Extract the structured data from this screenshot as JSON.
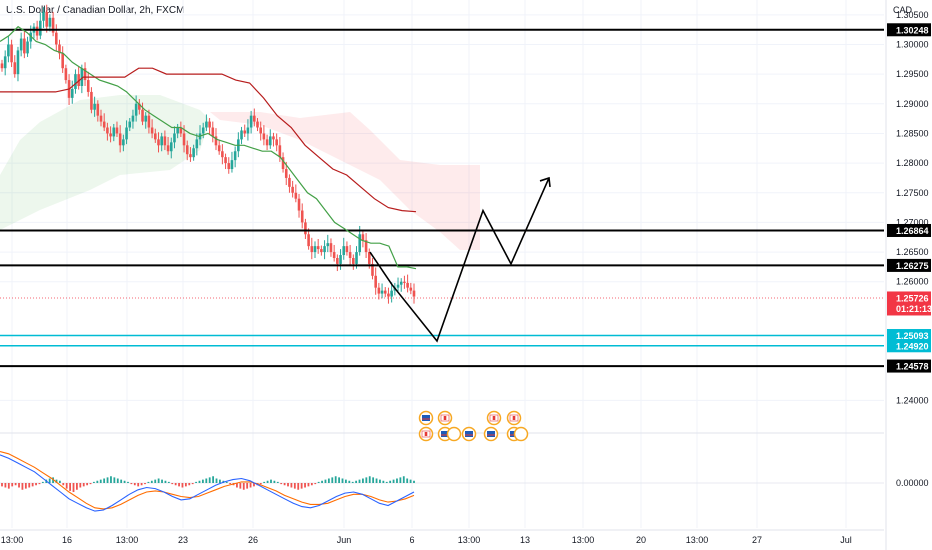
{
  "header": {
    "title": "U.S. Dollar / Canadian Dollar, 2h, FXCM",
    "currency": "CAD"
  },
  "chart_data": {
    "type": "line",
    "title": "U.S. Dollar / Canadian Dollar, 2h, FXCM",
    "xlabel": "",
    "ylabel": "",
    "ylim": [
      1.235,
      1.3075
    ],
    "grid": true,
    "x_ticks": [
      "13:00",
      "16",
      "13:00",
      "23",
      "26",
      "Jun",
      "6",
      "13:00",
      "13",
      "13:00",
      "20",
      "13:00",
      "27",
      "Jul"
    ],
    "y_ticks": [
      "1.30500",
      "1.30000",
      "1.29500",
      "1.29000",
      "1.28500",
      "1.28000",
      "1.27500",
      "1.27000",
      "1.26500",
      "1.26000",
      "1.24000"
    ],
    "macd_ticks": [
      "0.00000"
    ],
    "horizontal_levels": [
      {
        "value": 1.30248,
        "label": "1.30248",
        "color": "#000000"
      },
      {
        "value": 1.26864,
        "label": "1.26864",
        "color": "#000000"
      },
      {
        "value": 1.26275,
        "label": "1.26275",
        "color": "#000000"
      },
      {
        "value": 1.25093,
        "label": "1.25093",
        "color": "#00bcd4"
      },
      {
        "value": 1.2492,
        "label": "1.24920",
        "color": "#00bcd4"
      },
      {
        "value": 1.24578,
        "label": "1.24578",
        "color": "#000000"
      }
    ],
    "last_price": {
      "value": 1.25726,
      "label": "1.25726",
      "countdown": "01:21:13",
      "color": "#f23645"
    },
    "series": [
      {
        "values": [
          1.296,
          1.298,
          1.3,
          1.297,
          1.295,
          1.299,
          1.301,
          1.2985,
          1.3005,
          1.302,
          1.303,
          1.3015,
          1.304,
          1.3055,
          1.303,
          1.3045,
          1.302,
          1.3,
          1.2985,
          1.296,
          1.294,
          1.291,
          1.2925,
          1.295,
          1.293,
          1.296,
          1.294,
          1.292,
          1.289,
          1.29,
          1.288,
          1.287,
          1.286,
          1.285,
          1.2845,
          1.286,
          1.285,
          1.283,
          1.284,
          1.286,
          1.287,
          1.288,
          1.29,
          1.289,
          1.287,
          1.288,
          1.286,
          1.285,
          1.284,
          1.283,
          1.2845,
          1.283,
          1.282,
          1.2835,
          1.285,
          1.286,
          1.285,
          1.283,
          1.2815,
          1.281,
          1.2825,
          1.284,
          1.285,
          1.286,
          1.287,
          1.286,
          1.2845,
          1.283,
          1.282,
          1.281,
          1.28,
          1.279,
          1.2805,
          1.282,
          1.284,
          1.2855,
          1.285,
          1.286,
          1.288,
          1.287,
          1.286,
          1.285,
          1.284,
          1.283,
          1.2845,
          1.284,
          1.283,
          1.281,
          1.279,
          1.2775,
          1.276,
          1.275,
          1.274,
          1.272,
          1.27,
          1.268,
          1.266,
          1.265,
          1.266,
          1.2655,
          1.265,
          1.266,
          1.2665,
          1.265,
          1.264,
          1.263,
          1.2645,
          1.266,
          1.265,
          1.264,
          1.263,
          1.265,
          1.268,
          1.267,
          1.265,
          1.263,
          1.261,
          1.259,
          1.258,
          1.2585,
          1.258,
          1.2575,
          1.2585,
          1.259,
          1.2595,
          1.26,
          1.2598,
          1.259,
          1.2585,
          1.2575
        ]
      },
      {
        "values": [
          1.3005,
          1.3015,
          1.303,
          1.302,
          1.3005,
          1.3,
          1.299,
          1.2985,
          1.297,
          1.296,
          1.295,
          1.294,
          1.2935,
          1.293,
          1.292,
          1.2905,
          1.289,
          1.288,
          1.287,
          1.286,
          1.286,
          1.285,
          1.2845,
          1.285,
          1.284,
          1.2835,
          1.283,
          1.283,
          1.2825,
          1.282,
          1.282,
          1.281,
          1.279,
          1.277,
          1.275,
          1.274,
          1.272,
          1.27,
          1.269,
          1.268,
          1.267,
          1.2665,
          1.2665,
          1.266,
          1.2625,
          1.2625,
          1.2622
        ]
      },
      {
        "values": [
          1.292,
          1.292,
          1.292,
          1.292,
          1.292,
          1.2925,
          1.2945,
          1.2945,
          1.2945,
          1.2945,
          1.296,
          1.296,
          1.295,
          1.295,
          1.295,
          1.295,
          1.295,
          1.294,
          1.2935,
          1.291,
          1.288,
          1.286,
          1.283,
          1.281,
          1.279,
          1.278,
          1.276,
          1.274,
          1.2725,
          1.272,
          1.2718
        ]
      }
    ],
    "projection_path": [
      1.265,
      1.2595,
      1.25,
      1.272,
      1.263,
      1.2775
    ],
    "macd": {
      "ylim": [
        -0.004,
        0.004
      ],
      "hist": [
        -0.0003,
        -0.0004,
        -0.0005,
        -0.0003,
        -0.0002,
        -0.0004,
        -0.0006,
        -0.0005,
        -0.0004,
        -0.0003,
        -0.0002,
        -0.0001,
        0.0001,
        0.0003,
        0.0004,
        0.0005,
        0.0003,
        0.0002,
        -0.0002,
        -0.0005,
        -0.0007,
        -0.0008,
        -0.0006,
        -0.0004,
        -0.0003,
        -0.0002,
        -0.0001,
        0.0001,
        0.0002,
        0.0003,
        0.0004,
        0.0005,
        0.0006,
        0.0005,
        0.0004,
        0.0003,
        0.0002,
        0.0001,
        -0.0001,
        -0.0002,
        -0.0003,
        -0.0002,
        -0.0001,
        0.0001,
        0.0002,
        0.0003,
        0.0004,
        0.0003,
        0.0002,
        0.0001,
        -0.0001,
        -0.0002,
        -0.0003,
        -0.0004,
        -0.0003,
        -0.0002,
        -0.0001,
        0.0001,
        0.0002,
        0.0003,
        0.0004,
        0.0005,
        0.0006,
        0.0004,
        0.0003,
        0.0002,
        0.0001,
        -0.0001,
        -0.0002,
        -0.0004,
        -0.0005,
        -0.0006,
        -0.0005,
        -0.0004,
        -0.0003,
        -0.0002,
        -0.0001,
        0.0001,
        0.0002,
        0.0003,
        0.0002,
        0.0001,
        -0.0001,
        -0.0002,
        -0.0003,
        -0.0004,
        -0.0005,
        -0.0006,
        -0.0005,
        -0.0004,
        -0.0003,
        -0.0002,
        -0.0001,
        0.0001,
        0.0002,
        0.0003,
        0.0004,
        0.0005,
        0.0006,
        0.0005,
        0.0004,
        0.0003,
        0.0002,
        0.0001,
        0.0002,
        0.0003,
        0.0004,
        0.0005,
        0.0006,
        0.0005,
        0.0004,
        0.0003,
        0.0002,
        0.0001,
        0.0002,
        0.0003,
        0.0004,
        0.0005,
        0.0006,
        0.0004,
        0.0003,
        0.0002
      ],
      "macd_line": [
        0.0025,
        0.0022,
        0.0018,
        0.0014,
        0.001,
        0.0004,
        -0.0002,
        -0.0008,
        -0.0014,
        -0.0018,
        -0.0022,
        -0.0025,
        -0.0024,
        -0.002,
        -0.0015,
        -0.001,
        -0.0006,
        -0.0004,
        -0.0005,
        -0.0008,
        -0.0012,
        -0.0015,
        -0.0014,
        -0.001,
        -0.0006,
        -0.0002,
        0.0001,
        0.0003,
        0.0004,
        0.0002,
        -0.0002,
        -0.0006,
        -0.001,
        -0.0014,
        -0.0018,
        -0.0021,
        -0.0022,
        -0.002,
        -0.0016,
        -0.0012,
        -0.0009,
        -0.0008,
        -0.001,
        -0.0014,
        -0.0018,
        -0.002,
        -0.0016,
        -0.0012,
        -0.0008
      ],
      "signal_line": [
        0.0028,
        0.0026,
        0.0022,
        0.0018,
        0.0014,
        0.0009,
        0.0004,
        -0.0002,
        -0.0008,
        -0.0013,
        -0.0018,
        -0.0022,
        -0.0023,
        -0.0022,
        -0.0019,
        -0.0015,
        -0.0011,
        -0.0008,
        -0.0007,
        -0.0008,
        -0.001,
        -0.0012,
        -0.0013,
        -0.0012,
        -0.0009,
        -0.0006,
        -0.0003,
        -0.0001,
        0.0001,
        0.0001,
        -0.0001,
        -0.0004,
        -0.0007,
        -0.0011,
        -0.0014,
        -0.0017,
        -0.0019,
        -0.0019,
        -0.0018,
        -0.0015,
        -0.0012,
        -0.001,
        -0.001,
        -0.0012,
        -0.0015,
        -0.0017,
        -0.0016,
        -0.0014,
        -0.0011
      ]
    }
  }
}
